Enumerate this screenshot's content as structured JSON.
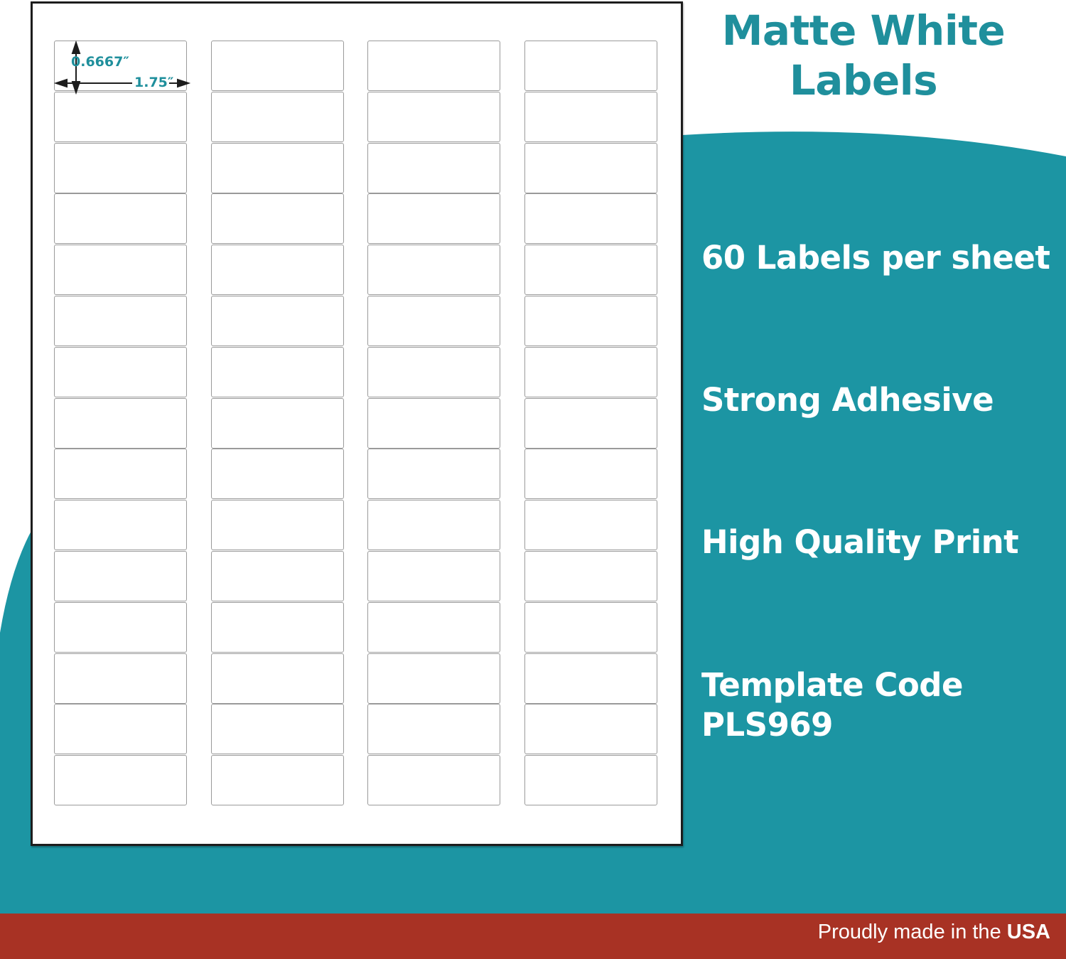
{
  "title": {
    "line1": "Matte White",
    "line2": "Labels"
  },
  "dimensions": {
    "height": "0.6667″",
    "width": "1.75″"
  },
  "sheet": {
    "columns": 4,
    "rows": 15
  },
  "features": [
    {
      "text": "60 Labels per sheet"
    },
    {
      "text": "Strong Adhesive"
    },
    {
      "text": "High Quality Print"
    },
    {
      "line1": "Template Code",
      "line2": "PLS969"
    }
  ],
  "footer": {
    "text": "Proudly made in the",
    "bold": "USA"
  },
  "colors": {
    "teal": "#1c95a3",
    "title_teal": "#1f8f9c",
    "red": "#a83224"
  }
}
